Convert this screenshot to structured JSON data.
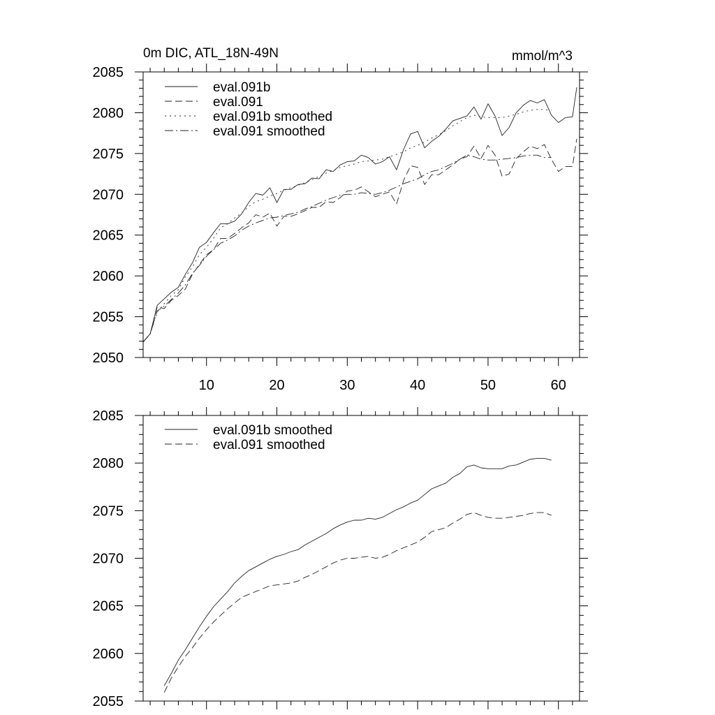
{
  "chart_data": [
    {
      "type": "line",
      "title": "0m DIC, ATL_18N-49N",
      "units": "mmol/m^3",
      "xlabel": "",
      "ylabel": "",
      "xlim": [
        1,
        63
      ],
      "ylim": [
        2050,
        2085
      ],
      "x_ticks": [
        10,
        20,
        30,
        40,
        50,
        60
      ],
      "y_ticks": [
        2050,
        2055,
        2060,
        2065,
        2070,
        2075,
        2080,
        2085
      ],
      "grid": false,
      "legend": "top-left",
      "series": [
        {
          "name": "eval.091b",
          "dash": "",
          "x": [
            1,
            2,
            3,
            4,
            5,
            6,
            7,
            8,
            9,
            10,
            11,
            12,
            13,
            14,
            15,
            16,
            17,
            18,
            19,
            20,
            21,
            22,
            23,
            24,
            25,
            26,
            27,
            28,
            29,
            30,
            31,
            32,
            33,
            34,
            35,
            36,
            37,
            38,
            39,
            40,
            41,
            42,
            43,
            44,
            45,
            46,
            47,
            48,
            49,
            50,
            51,
            52,
            53,
            54,
            55,
            56,
            57,
            58,
            59,
            60,
            61,
            62
          ],
          "y": [
            2051.9,
            2052.9,
            2056.4,
            2057.2,
            2058.0,
            2058.6,
            2060.2,
            2061.6,
            2063.5,
            2064.1,
            2065.3,
            2066.4,
            2066.4,
            2066.7,
            2067.6,
            2069.0,
            2070.1,
            2069.9,
            2070.8,
            2069.0,
            2070.6,
            2070.6,
            2071.2,
            2071.3,
            2072.0,
            2071.9,
            2073.0,
            2072.8,
            2073.6,
            2074.0,
            2074.1,
            2074.8,
            2074.5,
            2073.7,
            2074.0,
            2074.6,
            2073.0,
            2075.5,
            2077.4,
            2077.7,
            2075.7,
            2076.5,
            2077.1,
            2078.0,
            2079.0,
            2079.3,
            2079.6,
            2080.7,
            2079.2,
            2081.1,
            2079.6,
            2077.2,
            2078.2,
            2080.0,
            2080.9,
            2081.5,
            2081.2,
            2081.6,
            2079.7,
            2078.8,
            2079.4,
            2079.5
          ],
          "x_end": 62.6,
          "y_end": 2083.1
        },
        {
          "name": "eval.091",
          "dash": "10,5",
          "x": [
            1,
            2,
            3,
            4,
            5,
            6,
            7,
            8,
            9,
            10,
            11,
            12,
            13,
            14,
            15,
            16,
            17,
            18,
            19,
            20,
            21,
            22,
            23,
            24,
            25,
            26,
            27,
            28,
            29,
            30,
            31,
            32,
            33,
            34,
            35,
            36,
            37,
            38,
            39,
            40,
            41,
            42,
            43,
            44,
            45,
            46,
            47,
            48,
            49,
            50,
            51,
            52,
            53,
            54,
            55,
            56,
            57,
            58,
            59,
            60,
            61,
            62
          ],
          "y": [
            2051.9,
            2052.9,
            2056.2,
            2056.0,
            2057.0,
            2057.6,
            2058.4,
            2060.2,
            2061.4,
            2062.6,
            2063.2,
            2064.6,
            2064.6,
            2065.2,
            2065.9,
            2066.5,
            2067.5,
            2067.2,
            2067.7,
            2066.1,
            2067.3,
            2067.3,
            2067.6,
            2068.0,
            2068.4,
            2068.4,
            2069.1,
            2069.0,
            2069.6,
            2070.4,
            2070.5,
            2070.9,
            2070.3,
            2069.7,
            2070.0,
            2070.3,
            2068.8,
            2071.7,
            2073.5,
            2073.3,
            2071.2,
            2072.4,
            2072.4,
            2073.0,
            2073.6,
            2074.3,
            2074.6,
            2075.9,
            2074.4,
            2076.0,
            2074.8,
            2072.2,
            2072.5,
            2074.4,
            2075.2,
            2075.9,
            2075.6,
            2076.1,
            2074.3,
            2072.8,
            2073.4,
            2073.4
          ],
          "x_end": 62.6,
          "y_end": 2076.8
        },
        {
          "name": "eval.091b smoothed",
          "dash": "2,5",
          "x": [
            1,
            2,
            3,
            4,
            5,
            6,
            7,
            8,
            9,
            10,
            11,
            12,
            13,
            14,
            15,
            16,
            17,
            18,
            19,
            20,
            21,
            22,
            23,
            24,
            25,
            26,
            27,
            28,
            29,
            30,
            31,
            32,
            33,
            34,
            35,
            36,
            37,
            38,
            39,
            40,
            41,
            42,
            43,
            44,
            45,
            46,
            47,
            48,
            49,
            50,
            51,
            52,
            53,
            54,
            55,
            56,
            57,
            58,
            59
          ],
          "y": [
            2051.9,
            2052.9,
            2055.6,
            2056.6,
            2057.6,
            2058.3,
            2059.9,
            2061.1,
            2062.6,
            2063.5,
            2064.6,
            2065.9,
            2066.4,
            2067.1,
            2067.7,
            2068.5,
            2069.1,
            2069.4,
            2069.8,
            2070.1,
            2070.5,
            2070.8,
            2071.1,
            2071.4,
            2071.8,
            2072.2,
            2072.6,
            2072.9,
            2073.3,
            2073.5,
            2073.7,
            2074.0,
            2074.1,
            2074.2,
            2074.3,
            2074.6,
            2074.9,
            2075.2,
            2075.7,
            2076.0,
            2076.4,
            2076.9,
            2077.3,
            2077.8,
            2078.4,
            2078.9,
            2079.4,
            2079.7,
            2079.5,
            2079.4,
            2079.4,
            2079.4,
            2079.6,
            2079.8,
            2080.1,
            2080.3,
            2080.4,
            2080.4,
            2080.3
          ]
        },
        {
          "name": "eval.091 smoothed",
          "dash": "12,4,2,4",
          "x": [
            1,
            2,
            3,
            4,
            5,
            6,
            7,
            8,
            9,
            10,
            11,
            12,
            13,
            14,
            15,
            16,
            17,
            18,
            19,
            20,
            21,
            22,
            23,
            24,
            25,
            26,
            27,
            28,
            29,
            30,
            31,
            32,
            33,
            34,
            35,
            36,
            37,
            38,
            39,
            40,
            41,
            42,
            43,
            44,
            45,
            46,
            47,
            48,
            49,
            50,
            51,
            52,
            53,
            54,
            55,
            56,
            57,
            58,
            59
          ],
          "y": [
            2051.9,
            2052.9,
            2055.7,
            2056.3,
            2057.1,
            2057.9,
            2058.9,
            2060.3,
            2061.3,
            2062.4,
            2063.2,
            2064.0,
            2064.4,
            2064.9,
            2065.6,
            2066.1,
            2066.5,
            2066.8,
            2067.1,
            2067.2,
            2067.4,
            2067.6,
            2067.8,
            2068.2,
            2068.5,
            2068.9,
            2069.3,
            2069.6,
            2069.9,
            2070.0,
            2070.0,
            2070.2,
            2070.1,
            2070.0,
            2070.2,
            2070.5,
            2070.9,
            2071.3,
            2071.6,
            2071.9,
            2072.4,
            2072.8,
            2073.0,
            2073.4,
            2073.8,
            2074.3,
            2074.8,
            2074.6,
            2074.3,
            2074.2,
            2074.2,
            2074.3,
            2074.4,
            2074.5,
            2074.7,
            2074.8,
            2074.8,
            2074.5,
            2074.5
          ]
        }
      ]
    },
    {
      "type": "line",
      "title": "",
      "xlabel": "",
      "ylabel": "",
      "xlim": [
        1,
        63
      ],
      "ylim": [
        2055,
        2085
      ],
      "x_ticks": [
        10,
        20,
        30,
        40,
        50,
        60
      ],
      "y_ticks": [
        2055,
        2060,
        2065,
        2070,
        2075,
        2080,
        2085
      ],
      "grid": false,
      "legend": "top-left",
      "series": [
        {
          "name": "eval.091b smoothed",
          "dash": "",
          "x": [
            4,
            5,
            6,
            7,
            8,
            9,
            10,
            11,
            12,
            13,
            14,
            15,
            16,
            17,
            18,
            19,
            20,
            21,
            22,
            23,
            24,
            25,
            26,
            27,
            28,
            29,
            30,
            31,
            32,
            33,
            34,
            35,
            36,
            37,
            38,
            39,
            40,
            41,
            42,
            43,
            44,
            45,
            46,
            47,
            48,
            49,
            50,
            51,
            52,
            53,
            54,
            55,
            56,
            57,
            58,
            59
          ],
          "y": [
            2056.6,
            2057.9,
            2059.3,
            2060.4,
            2061.6,
            2062.8,
            2063.9,
            2064.9,
            2065.7,
            2066.5,
            2067.4,
            2068.1,
            2068.7,
            2069.1,
            2069.5,
            2069.9,
            2070.2,
            2070.4,
            2070.7,
            2070.9,
            2071.4,
            2071.8,
            2072.2,
            2072.6,
            2073.1,
            2073.5,
            2073.8,
            2074.0,
            2074.0,
            2074.2,
            2074.1,
            2074.3,
            2074.7,
            2075.1,
            2075.4,
            2075.8,
            2076.1,
            2076.7,
            2077.3,
            2077.6,
            2077.9,
            2078.5,
            2078.9,
            2079.6,
            2079.8,
            2079.5,
            2079.4,
            2079.4,
            2079.4,
            2079.7,
            2079.8,
            2080.1,
            2080.4,
            2080.5,
            2080.5,
            2080.3
          ]
        },
        {
          "name": "eval.091 smoothed",
          "dash": "10,5",
          "x": [
            4,
            5,
            6,
            7,
            8,
            9,
            10,
            11,
            12,
            13,
            14,
            15,
            16,
            17,
            18,
            19,
            20,
            21,
            22,
            23,
            24,
            25,
            26,
            27,
            28,
            29,
            30,
            31,
            32,
            33,
            34,
            35,
            36,
            37,
            38,
            39,
            40,
            41,
            42,
            43,
            44,
            45,
            46,
            47,
            48,
            49,
            50,
            51,
            52,
            53,
            54,
            55,
            56,
            57,
            58,
            59
          ],
          "y": [
            2055.9,
            2057.4,
            2058.6,
            2059.7,
            2060.6,
            2061.6,
            2062.5,
            2063.3,
            2064.0,
            2064.7,
            2065.3,
            2065.9,
            2066.2,
            2066.5,
            2066.8,
            2067.1,
            2067.2,
            2067.3,
            2067.4,
            2067.6,
            2068.0,
            2068.3,
            2068.7,
            2069.1,
            2069.5,
            2069.8,
            2070.0,
            2070.0,
            2070.1,
            2070.2,
            2070.0,
            2070.1,
            2070.4,
            2070.8,
            2071.1,
            2071.4,
            2071.7,
            2072.2,
            2072.8,
            2073.0,
            2073.2,
            2073.7,
            2074.1,
            2074.6,
            2074.8,
            2074.5,
            2074.3,
            2074.2,
            2074.2,
            2074.3,
            2074.4,
            2074.5,
            2074.7,
            2074.8,
            2074.8,
            2074.5
          ]
        }
      ]
    }
  ]
}
